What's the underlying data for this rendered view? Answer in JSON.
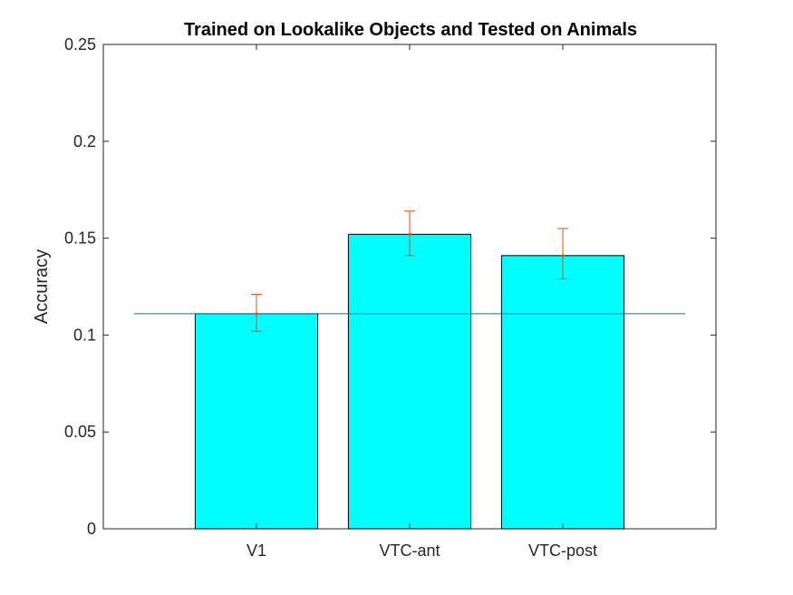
{
  "chart_data": {
    "type": "bar",
    "title": "Trained on Lookalike Objects and Tested on Animals",
    "xlabel": "",
    "ylabel": "Accuracy",
    "categories": [
      "V1",
      "VTC-ant",
      "VTC-post"
    ],
    "values": [
      0.111,
      0.152,
      0.141
    ],
    "error_low": [
      0.102,
      0.141,
      0.129
    ],
    "error_high": [
      0.121,
      0.164,
      0.155
    ],
    "ylim": [
      0,
      0.25
    ],
    "xlim": [
      0,
      4
    ],
    "yticks": [
      0,
      0.05,
      0.1,
      0.15,
      0.2,
      0.25
    ],
    "ytick_labels": [
      "0",
      "0.05",
      "0.1",
      "0.15",
      "0.2",
      "0.25"
    ],
    "reference_line": {
      "y": 0.111,
      "x_range": [
        0.2,
        3.8
      ]
    },
    "grid": false,
    "colors": {
      "bar_fill": "#00ffff",
      "bar_edge": "#000000",
      "errorbar": "#d95319",
      "reference_line": "#0072bd",
      "axes": "#262626"
    }
  }
}
